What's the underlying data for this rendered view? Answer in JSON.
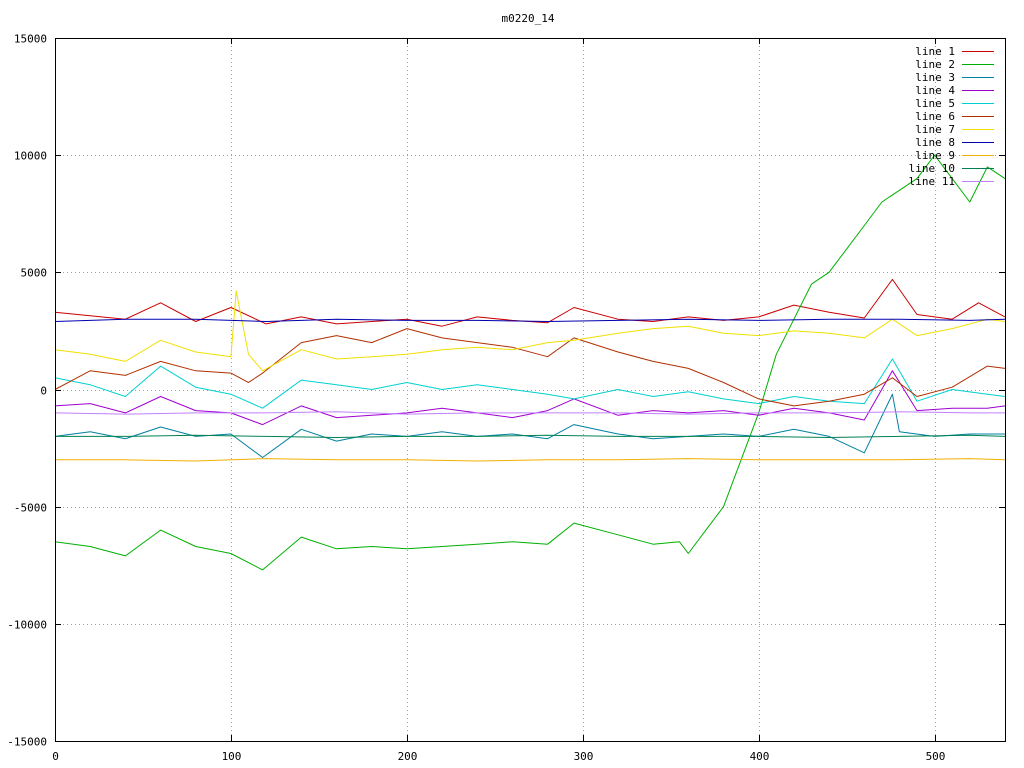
{
  "chart_data": {
    "type": "line",
    "title": "m0220_14",
    "xlabel": "",
    "ylabel": "",
    "xlim": [
      0,
      540
    ],
    "ylim": [
      -15000,
      15000
    ],
    "xticks": [
      0,
      100,
      200,
      300,
      400,
      500
    ],
    "yticks": [
      -15000,
      -10000,
      -5000,
      0,
      5000,
      10000,
      15000
    ],
    "grid": true,
    "legend_position": "top-right",
    "series": [
      {
        "name": "line 1",
        "color": "#cc0000",
        "points": [
          [
            0,
            3300
          ],
          [
            20,
            3150
          ],
          [
            40,
            3000
          ],
          [
            60,
            3700
          ],
          [
            80,
            2900
          ],
          [
            100,
            3500
          ],
          [
            120,
            2800
          ],
          [
            140,
            3100
          ],
          [
            160,
            2800
          ],
          [
            180,
            2900
          ],
          [
            200,
            3000
          ],
          [
            220,
            2700
          ],
          [
            240,
            3100
          ],
          [
            260,
            2950
          ],
          [
            280,
            2850
          ],
          [
            295,
            3500
          ],
          [
            320,
            3000
          ],
          [
            340,
            2900
          ],
          [
            360,
            3100
          ],
          [
            380,
            2950
          ],
          [
            400,
            3100
          ],
          [
            420,
            3600
          ],
          [
            440,
            3300
          ],
          [
            460,
            3050
          ],
          [
            476,
            4700
          ],
          [
            490,
            3200
          ],
          [
            510,
            3000
          ],
          [
            525,
            3700
          ],
          [
            540,
            3100
          ]
        ]
      },
      {
        "name": "line 2",
        "color": "#00b000",
        "points": [
          [
            0,
            -6500
          ],
          [
            20,
            -6700
          ],
          [
            40,
            -7100
          ],
          [
            60,
            -6000
          ],
          [
            80,
            -6700
          ],
          [
            100,
            -7000
          ],
          [
            118,
            -7700
          ],
          [
            140,
            -6300
          ],
          [
            160,
            -6800
          ],
          [
            180,
            -6700
          ],
          [
            200,
            -6800
          ],
          [
            220,
            -6700
          ],
          [
            240,
            -6600
          ],
          [
            260,
            -6500
          ],
          [
            280,
            -6600
          ],
          [
            295,
            -5700
          ],
          [
            320,
            -6200
          ],
          [
            340,
            -6600
          ],
          [
            355,
            -6500
          ],
          [
            360,
            -7000
          ],
          [
            370,
            -6000
          ],
          [
            380,
            -5000
          ],
          [
            390,
            -3000
          ],
          [
            400,
            -1000
          ],
          [
            410,
            1500
          ],
          [
            420,
            3000
          ],
          [
            430,
            4500
          ],
          [
            440,
            5000
          ],
          [
            450,
            6000
          ],
          [
            460,
            7000
          ],
          [
            470,
            8000
          ],
          [
            480,
            8500
          ],
          [
            490,
            9000
          ],
          [
            500,
            10000
          ],
          [
            510,
            9000
          ],
          [
            520,
            8000
          ],
          [
            530,
            9500
          ],
          [
            540,
            9000
          ]
        ]
      },
      {
        "name": "line 3",
        "color": "#0080a0",
        "points": [
          [
            0,
            -2000
          ],
          [
            20,
            -1800
          ],
          [
            40,
            -2100
          ],
          [
            60,
            -1600
          ],
          [
            80,
            -2000
          ],
          [
            100,
            -1900
          ],
          [
            118,
            -2900
          ],
          [
            140,
            -1700
          ],
          [
            160,
            -2200
          ],
          [
            180,
            -1900
          ],
          [
            200,
            -2000
          ],
          [
            220,
            -1800
          ],
          [
            240,
            -2000
          ],
          [
            260,
            -1900
          ],
          [
            280,
            -2100
          ],
          [
            295,
            -1500
          ],
          [
            320,
            -1900
          ],
          [
            340,
            -2100
          ],
          [
            360,
            -2000
          ],
          [
            380,
            -1900
          ],
          [
            400,
            -2000
          ],
          [
            420,
            -1700
          ],
          [
            440,
            -2000
          ],
          [
            460,
            -2700
          ],
          [
            476,
            -200
          ],
          [
            480,
            -1800
          ],
          [
            500,
            -2000
          ],
          [
            520,
            -1900
          ],
          [
            540,
            -1900
          ]
        ]
      },
      {
        "name": "line 4",
        "color": "#a000d0",
        "points": [
          [
            0,
            -700
          ],
          [
            20,
            -600
          ],
          [
            40,
            -1000
          ],
          [
            60,
            -300
          ],
          [
            80,
            -900
          ],
          [
            100,
            -1000
          ],
          [
            118,
            -1500
          ],
          [
            140,
            -700
          ],
          [
            160,
            -1200
          ],
          [
            180,
            -1100
          ],
          [
            200,
            -1000
          ],
          [
            220,
            -800
          ],
          [
            240,
            -1000
          ],
          [
            260,
            -1200
          ],
          [
            280,
            -900
          ],
          [
            295,
            -400
          ],
          [
            320,
            -1100
          ],
          [
            340,
            -900
          ],
          [
            360,
            -1000
          ],
          [
            380,
            -900
          ],
          [
            400,
            -1100
          ],
          [
            420,
            -800
          ],
          [
            440,
            -1000
          ],
          [
            460,
            -1300
          ],
          [
            476,
            800
          ],
          [
            490,
            -900
          ],
          [
            510,
            -800
          ],
          [
            530,
            -800
          ],
          [
            540,
            -700
          ]
        ]
      },
      {
        "name": "line 5",
        "color": "#00d0d0",
        "points": [
          [
            0,
            500
          ],
          [
            20,
            200
          ],
          [
            40,
            -300
          ],
          [
            60,
            1000
          ],
          [
            80,
            100
          ],
          [
            100,
            -200
          ],
          [
            118,
            -800
          ],
          [
            140,
            400
          ],
          [
            160,
            200
          ],
          [
            180,
            0
          ],
          [
            200,
            300
          ],
          [
            220,
            0
          ],
          [
            240,
            200
          ],
          [
            260,
            0
          ],
          [
            280,
            -200
          ],
          [
            295,
            -400
          ],
          [
            320,
            0
          ],
          [
            340,
            -300
          ],
          [
            360,
            -100
          ],
          [
            380,
            -400
          ],
          [
            400,
            -600
          ],
          [
            420,
            -300
          ],
          [
            440,
            -500
          ],
          [
            460,
            -600
          ],
          [
            476,
            1300
          ],
          [
            490,
            -500
          ],
          [
            510,
            0
          ],
          [
            530,
            -200
          ],
          [
            540,
            -300
          ]
        ]
      },
      {
        "name": "line 6",
        "color": "#b03000",
        "points": [
          [
            0,
            0
          ],
          [
            20,
            800
          ],
          [
            40,
            600
          ],
          [
            60,
            1200
          ],
          [
            80,
            800
          ],
          [
            100,
            700
          ],
          [
            110,
            300
          ],
          [
            118,
            700
          ],
          [
            140,
            2000
          ],
          [
            160,
            2300
          ],
          [
            180,
            2000
          ],
          [
            200,
            2600
          ],
          [
            220,
            2200
          ],
          [
            240,
            2000
          ],
          [
            260,
            1800
          ],
          [
            280,
            1400
          ],
          [
            295,
            2200
          ],
          [
            320,
            1600
          ],
          [
            340,
            1200
          ],
          [
            360,
            900
          ],
          [
            380,
            300
          ],
          [
            400,
            -400
          ],
          [
            420,
            -700
          ],
          [
            440,
            -500
          ],
          [
            460,
            -200
          ],
          [
            476,
            500
          ],
          [
            490,
            -300
          ],
          [
            510,
            100
          ],
          [
            530,
            1000
          ],
          [
            540,
            900
          ]
        ]
      },
      {
        "name": "line 7",
        "color": "#f0e000",
        "points": [
          [
            0,
            1700
          ],
          [
            20,
            1500
          ],
          [
            40,
            1200
          ],
          [
            60,
            2100
          ],
          [
            80,
            1600
          ],
          [
            100,
            1400
          ],
          [
            103,
            4200
          ],
          [
            110,
            1500
          ],
          [
            118,
            800
          ],
          [
            140,
            1700
          ],
          [
            160,
            1300
          ],
          [
            180,
            1400
          ],
          [
            200,
            1500
          ],
          [
            220,
            1700
          ],
          [
            240,
            1800
          ],
          [
            260,
            1700
          ],
          [
            280,
            2000
          ],
          [
            295,
            2100
          ],
          [
            320,
            2400
          ],
          [
            340,
            2600
          ],
          [
            360,
            2700
          ],
          [
            380,
            2400
          ],
          [
            400,
            2300
          ],
          [
            420,
            2500
          ],
          [
            440,
            2400
          ],
          [
            460,
            2200
          ],
          [
            476,
            3000
          ],
          [
            490,
            2300
          ],
          [
            510,
            2600
          ],
          [
            530,
            3000
          ],
          [
            540,
            2900
          ]
        ]
      },
      {
        "name": "line 8",
        "color": "#0000b0",
        "points": [
          [
            0,
            2900
          ],
          [
            40,
            3000
          ],
          [
            80,
            3000
          ],
          [
            120,
            2900
          ],
          [
            160,
            3000
          ],
          [
            200,
            2950
          ],
          [
            240,
            2950
          ],
          [
            280,
            2900
          ],
          [
            320,
            2950
          ],
          [
            360,
            3000
          ],
          [
            400,
            2950
          ],
          [
            440,
            3000
          ],
          [
            480,
            3000
          ],
          [
            520,
            2950
          ],
          [
            540,
            3000
          ]
        ]
      },
      {
        "name": "line 9",
        "color": "#f0b000",
        "points": [
          [
            0,
            -3000
          ],
          [
            40,
            -3000
          ],
          [
            80,
            -3050
          ],
          [
            120,
            -2950
          ],
          [
            160,
            -3000
          ],
          [
            200,
            -3000
          ],
          [
            240,
            -3050
          ],
          [
            280,
            -3000
          ],
          [
            320,
            -3000
          ],
          [
            360,
            -2950
          ],
          [
            400,
            -3000
          ],
          [
            440,
            -3000
          ],
          [
            480,
            -3000
          ],
          [
            520,
            -2950
          ],
          [
            540,
            -3000
          ]
        ]
      },
      {
        "name": "line 10",
        "color": "#008050",
        "points": [
          [
            0,
            -2000
          ],
          [
            40,
            -2000
          ],
          [
            80,
            -1950
          ],
          [
            120,
            -2000
          ],
          [
            160,
            -2050
          ],
          [
            200,
            -2000
          ],
          [
            240,
            -2000
          ],
          [
            280,
            -1950
          ],
          [
            320,
            -2000
          ],
          [
            360,
            -2000
          ],
          [
            400,
            -2000
          ],
          [
            440,
            -2050
          ],
          [
            480,
            -2000
          ],
          [
            520,
            -1950
          ],
          [
            540,
            -2000
          ]
        ]
      },
      {
        "name": "line 11",
        "color": "#c080ff",
        "points": [
          [
            0,
            -1000
          ],
          [
            40,
            -1050
          ],
          [
            80,
            -1000
          ],
          [
            120,
            -1000
          ],
          [
            160,
            -950
          ],
          [
            200,
            -1050
          ],
          [
            240,
            -1000
          ],
          [
            280,
            -1000
          ],
          [
            320,
            -1000
          ],
          [
            360,
            -1050
          ],
          [
            400,
            -1000
          ],
          [
            440,
            -1000
          ],
          [
            480,
            -950
          ],
          [
            520,
            -1000
          ],
          [
            540,
            -1000
          ]
        ]
      }
    ]
  }
}
